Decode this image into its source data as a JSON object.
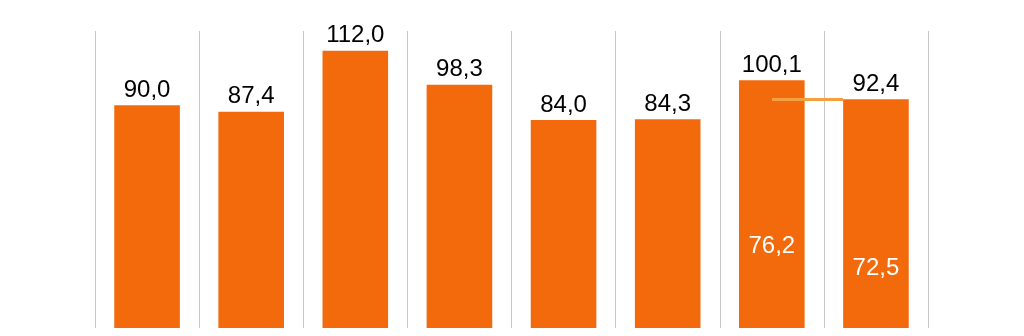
{
  "chart_data": {
    "type": "bar",
    "categories": [
      null,
      null,
      null,
      null,
      null,
      null,
      null,
      null
    ],
    "series": [
      {
        "color": "#f26a0c",
        "values": [
          90.0,
          87.4,
          112.0,
          98.3,
          84.0,
          84.3,
          100.1,
          92.4
        ],
        "value_labels": [
          "90,0",
          "87,4",
          "112,0",
          "98,3",
          "84,0",
          "84,3",
          "100,1",
          "92,4"
        ]
      }
    ],
    "annotations": [
      "76,2",
      "72,5"
    ],
    "grid": "x"
  }
}
